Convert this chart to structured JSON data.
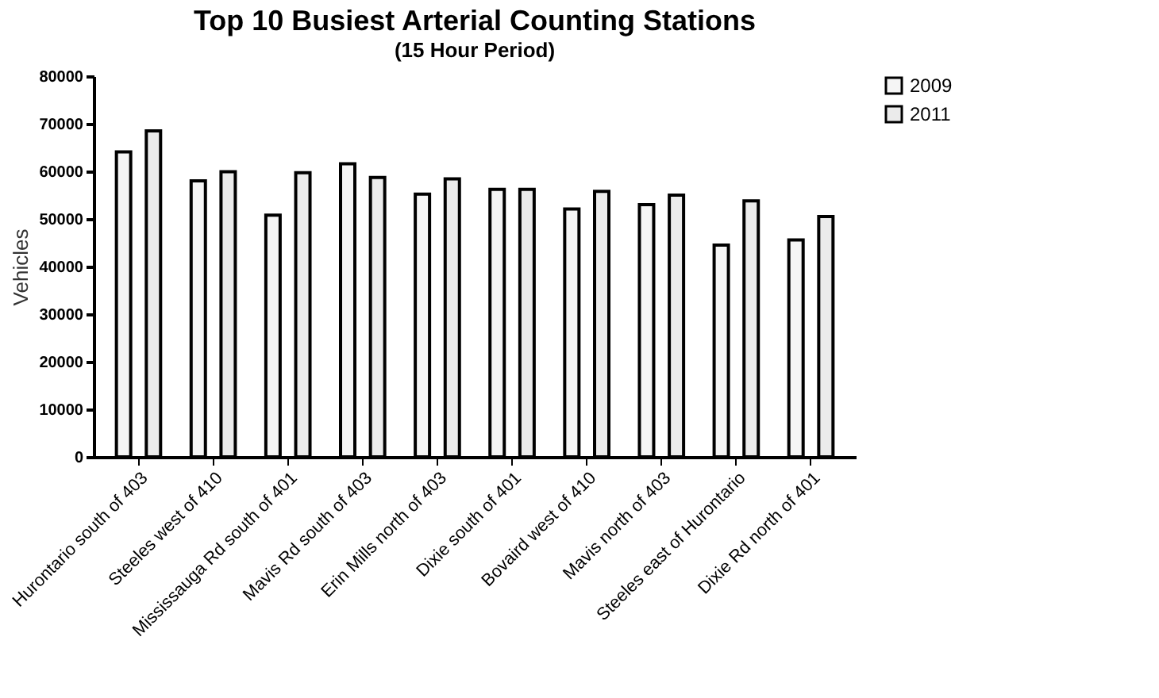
{
  "chart_data": {
    "type": "bar",
    "title": "Top 10 Busiest Arterial Counting Stations",
    "subtitle": "(15 Hour Period)",
    "ylabel": "Vehicles",
    "categories": [
      "Hurontario south of 403",
      "Steeles west of 410",
      "Mississauga Rd south of 401",
      "Mavis Rd south of 403",
      "Erin Mills north of 403",
      "Dixie south of 401",
      "Bovaird west of 410",
      "Mavis north of 403",
      "Steeles east of Hurontario",
      "Dixie Rd north of 401"
    ],
    "series": [
      {
        "name": "2009",
        "color": "#f5f5f5",
        "values": [
          64100,
          58000,
          50800,
          61600,
          55200,
          56200,
          52100,
          53000,
          44500,
          45600
        ]
      },
      {
        "name": "2011",
        "color": "#ebebeb",
        "values": [
          68500,
          59900,
          59700,
          58700,
          58400,
          56200,
          55800,
          55000,
          53800,
          50500
        ]
      }
    ],
    "ylim": [
      0,
      80000
    ],
    "yticks": [
      0,
      10000,
      20000,
      30000,
      40000,
      50000,
      60000,
      70000,
      80000
    ],
    "grid": false,
    "legend": "right"
  }
}
